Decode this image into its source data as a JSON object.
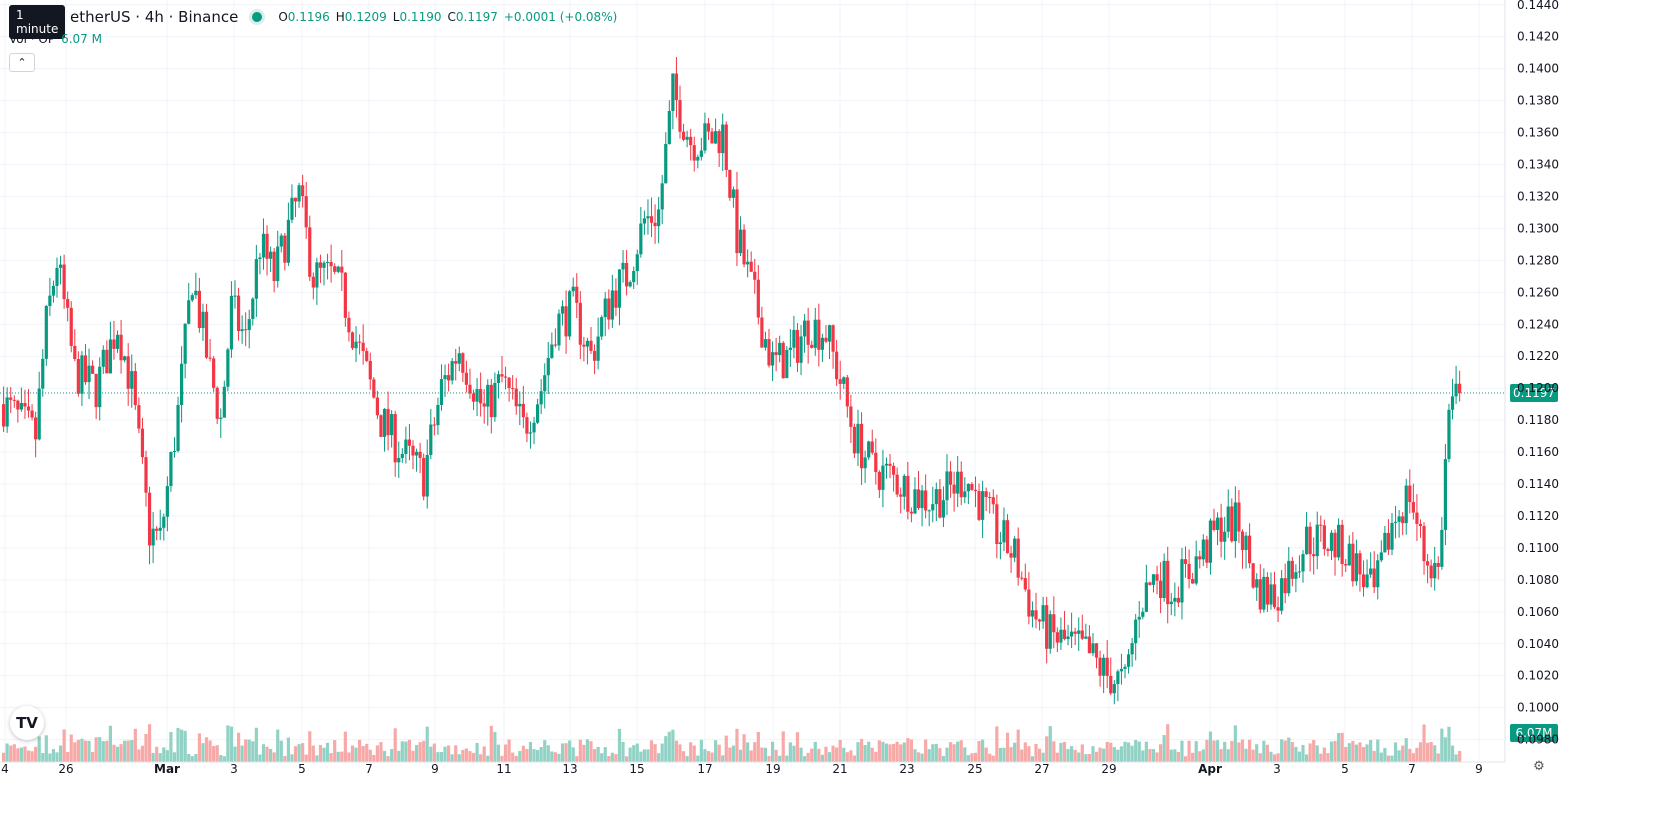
{
  "header": {
    "tooltip": "1 minute",
    "symbol": "etherUS · 4h · Binance",
    "o_label": "O",
    "o_value": "0.1196",
    "h_label": "H",
    "h_value": "0.1209",
    "l_label": "L",
    "l_value": "0.1190",
    "c_label": "C",
    "c_value": "0.1197",
    "change": "+0.0001 (+0.08%)"
  },
  "volume_legend": {
    "label": "Vol · OP",
    "value": "6.07 M"
  },
  "colors": {
    "up": "#089981",
    "down": "#f23645",
    "up_vol": "#92d2c5",
    "down_vol": "#f7a9a7",
    "grid": "#f0f3fa"
  },
  "icons": {
    "collapse": "chevron-up-icon",
    "logo": "tradingview-logo-icon",
    "settings": "gear-icon"
  },
  "chart_data": {
    "type": "candlestick",
    "timeframe": "4h",
    "ylim": [
      0.0966,
      0.1443
    ],
    "y_ticks": [
      0.098,
      0.1,
      0.102,
      0.104,
      0.106,
      0.108,
      0.11,
      0.112,
      0.114,
      0.116,
      0.118,
      0.12,
      0.122,
      0.124,
      0.126,
      0.128,
      0.13,
      0.132,
      0.134,
      0.136,
      0.138,
      0.14,
      0.142,
      0.144
    ],
    "x_tick_labels": [
      "4",
      "26",
      "Mar",
      "3",
      "5",
      "7",
      "9",
      "11",
      "13",
      "15",
      "17",
      "19",
      "21",
      "23",
      "25",
      "27",
      "29",
      "Apr",
      "3",
      "5",
      "7",
      "9"
    ],
    "bars_per_day": 6,
    "last_price": "0.1197",
    "last_volume": "6.07M",
    "price_keypoints": [
      [
        0,
        0.119
      ],
      [
        9,
        0.117
      ],
      [
        12,
        0.124
      ],
      [
        15,
        0.128
      ],
      [
        20,
        0.121
      ],
      [
        26,
        0.12
      ],
      [
        32,
        0.124
      ],
      [
        36,
        0.12
      ],
      [
        41,
        0.111
      ],
      [
        44,
        0.1105
      ],
      [
        49,
        0.1185
      ],
      [
        53,
        0.127
      ],
      [
        58,
        0.121
      ],
      [
        61,
        0.118
      ],
      [
        64,
        0.125
      ],
      [
        68,
        0.123
      ],
      [
        72,
        0.129
      ],
      [
        76,
        0.127
      ],
      [
        80,
        0.13
      ],
      [
        83,
        0.132
      ],
      [
        87,
        0.127
      ],
      [
        92,
        0.127
      ],
      [
        95,
        0.126
      ],
      [
        99,
        0.123
      ],
      [
        106,
        0.118
      ],
      [
        112,
        0.116
      ],
      [
        118,
        0.1145
      ],
      [
        123,
        0.12
      ],
      [
        128,
        0.1225
      ],
      [
        135,
        0.1185
      ],
      [
        140,
        0.1205
      ],
      [
        146,
        0.1175
      ],
      [
        151,
        0.12
      ],
      [
        155,
        0.124
      ],
      [
        160,
        0.125
      ],
      [
        165,
        0.122
      ],
      [
        171,
        0.126
      ],
      [
        175,
        0.127
      ],
      [
        180,
        0.1305
      ],
      [
        184,
        0.131
      ],
      [
        188,
        0.1385
      ],
      [
        193,
        0.1355
      ],
      [
        198,
        0.1355
      ],
      [
        202,
        0.136
      ],
      [
        206,
        0.1295
      ],
      [
        211,
        0.1255
      ],
      [
        216,
        0.1215
      ],
      [
        221,
        0.122
      ],
      [
        226,
        0.124
      ],
      [
        231,
        0.1235
      ],
      [
        235,
        0.1205
      ],
      [
        239,
        0.117
      ],
      [
        244,
        0.115
      ],
      [
        249,
        0.1145
      ],
      [
        255,
        0.1135
      ],
      [
        260,
        0.113
      ],
      [
        265,
        0.1135
      ],
      [
        270,
        0.1145
      ],
      [
        274,
        0.113
      ],
      [
        279,
        0.111
      ],
      [
        284,
        0.1095
      ],
      [
        289,
        0.106
      ],
      [
        294,
        0.1045
      ],
      [
        299,
        0.104
      ],
      [
        304,
        0.1035
      ],
      [
        310,
        0.102
      ],
      [
        315,
        0.1015
      ],
      [
        319,
        0.1065
      ],
      [
        324,
        0.1085
      ],
      [
        328,
        0.1075
      ],
      [
        333,
        0.1085
      ],
      [
        338,
        0.11
      ],
      [
        342,
        0.1115
      ],
      [
        347,
        0.1115
      ],
      [
        352,
        0.1075
      ],
      [
        357,
        0.107
      ],
      [
        361,
        0.1085
      ],
      [
        366,
        0.1105
      ],
      [
        371,
        0.1105
      ],
      [
        376,
        0.11
      ],
      [
        381,
        0.1085
      ],
      [
        385,
        0.107
      ],
      [
        390,
        0.1115
      ],
      [
        395,
        0.1135
      ],
      [
        399,
        0.1095
      ],
      [
        403,
        0.1085
      ],
      [
        406,
        0.1185
      ],
      [
        409,
        0.1197
      ]
    ],
    "volume_ylim": [
      0,
      190000000
    ]
  }
}
